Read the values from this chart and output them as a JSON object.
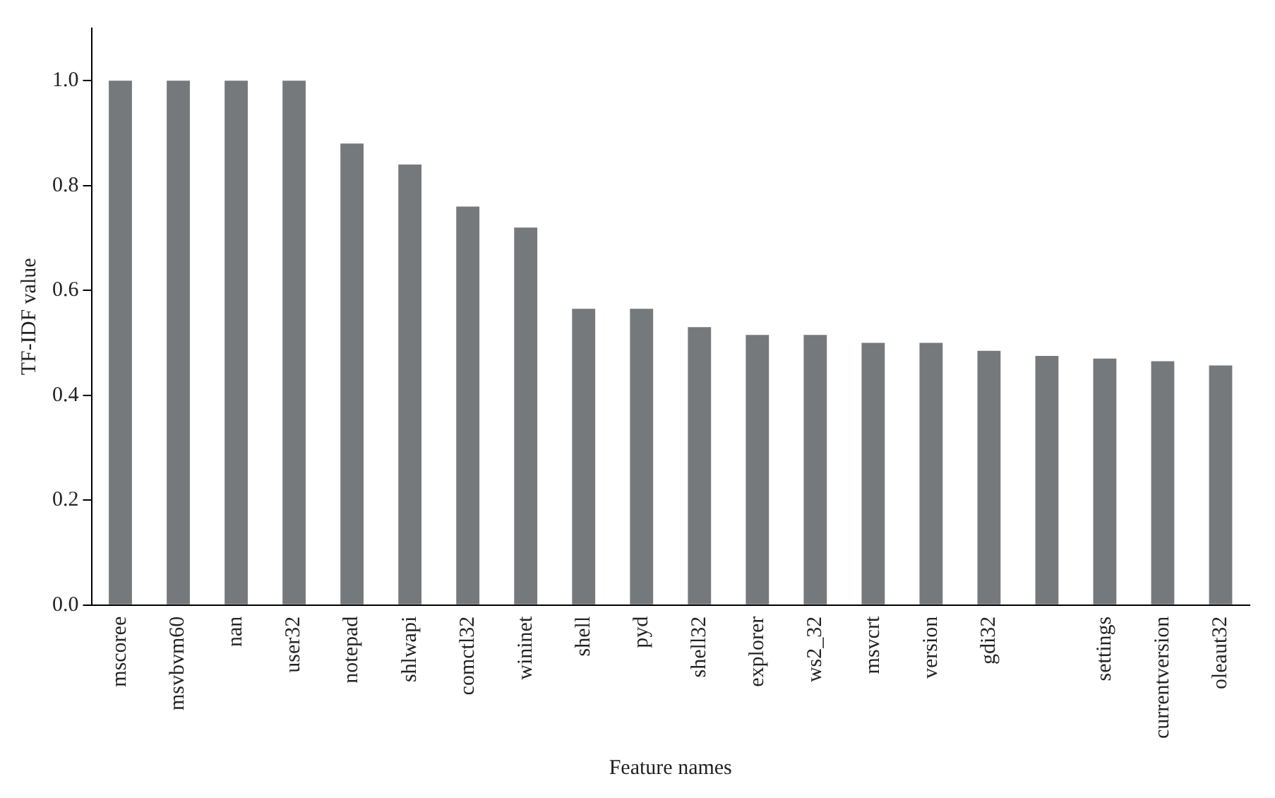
{
  "chart_data": {
    "type": "bar",
    "xlabel": "Feature names",
    "ylabel": "TF-IDF value",
    "categories": [
      "mscoree",
      "msvbvm60",
      "nan",
      "user32",
      "notepad",
      "shlwapi",
      "comctl32",
      "wininet",
      "shell",
      "pyd",
      "shell32",
      "explorer",
      "ws2_32",
      "msvcrt",
      "version",
      "gdi32",
      null,
      "settings",
      "currentversion",
      "oleaut32"
    ],
    "values": [
      1.0,
      1.0,
      1.0,
      1.0,
      0.88,
      0.84,
      0.76,
      0.72,
      0.565,
      0.565,
      0.53,
      0.515,
      0.515,
      0.5,
      0.5,
      0.485,
      0.475,
      0.47,
      0.465,
      0.457
    ],
    "color": "#76797c",
    "ylim": [
      0,
      1.1
    ],
    "yticks": [
      {
        "value": 0,
        "label": "0.0"
      },
      0.2,
      0.4,
      0.6,
      0.8,
      {
        "value": 1,
        "label": "1.0"
      }
    ],
    "grid": false,
    "legend": false
  }
}
